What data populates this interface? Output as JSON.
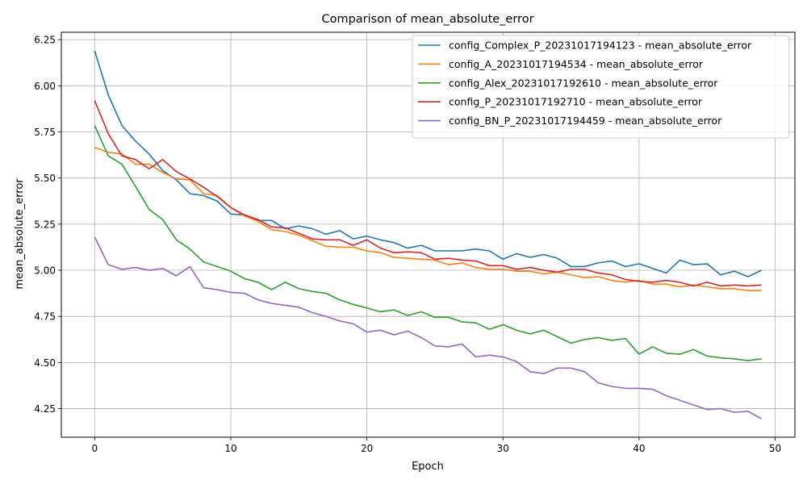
{
  "chart_data": {
    "type": "line",
    "title": "Comparison of mean_absolute_error",
    "xlabel": "Epoch",
    "ylabel": "mean_absolute_error",
    "xlim": [
      -2.45,
      51.45
    ],
    "ylim": [
      4.095,
      6.29
    ],
    "xticks": [
      0,
      10,
      20,
      30,
      40,
      50
    ],
    "yticks": [
      4.25,
      4.5,
      4.75,
      5.0,
      5.25,
      5.5,
      5.75,
      6.0,
      6.25
    ],
    "xtick_labels": [
      "0",
      "10",
      "20",
      "30",
      "40",
      "50"
    ],
    "ytick_labels": [
      "4.25",
      "4.50",
      "4.75",
      "5.00",
      "5.25",
      "5.50",
      "5.75",
      "6.00",
      "6.25"
    ],
    "grid": true,
    "legend_position": "top-right",
    "x": [
      0,
      1,
      2,
      3,
      4,
      5,
      6,
      7,
      8,
      9,
      10,
      11,
      12,
      13,
      14,
      15,
      16,
      17,
      18,
      19,
      20,
      21,
      22,
      23,
      24,
      25,
      26,
      27,
      28,
      29,
      30,
      31,
      32,
      33,
      34,
      35,
      36,
      37,
      38,
      39,
      40,
      41,
      42,
      43,
      44,
      45,
      46,
      47,
      48,
      49
    ],
    "series": [
      {
        "name": "config_Complex_P_20231017194123 - mean_absolute_error",
        "color": "#1f77b4",
        "values": [
          6.19,
          5.95,
          5.785,
          5.7,
          5.63,
          5.54,
          5.49,
          5.415,
          5.405,
          5.375,
          5.305,
          5.3,
          5.27,
          5.27,
          5.225,
          5.24,
          5.225,
          5.195,
          5.215,
          5.17,
          5.185,
          5.165,
          5.15,
          5.12,
          5.135,
          5.105,
          5.105,
          5.105,
          5.115,
          5.105,
          5.06,
          5.09,
          5.07,
          5.085,
          5.065,
          5.02,
          5.02,
          5.04,
          5.05,
          5.02,
          5.035,
          5.01,
          4.985,
          5.055,
          5.03,
          5.035,
          4.975,
          4.995,
          4.965,
          5.0
        ]
      },
      {
        "name": "config_A_20231017194534 - mean_absolute_error",
        "color": "#ff7f0e",
        "values": [
          5.665,
          5.64,
          5.63,
          5.575,
          5.575,
          5.53,
          5.495,
          5.49,
          5.415,
          5.405,
          5.34,
          5.295,
          5.265,
          5.22,
          5.21,
          5.19,
          5.16,
          5.13,
          5.125,
          5.125,
          5.105,
          5.095,
          5.07,
          5.065,
          5.06,
          5.055,
          5.03,
          5.04,
          5.015,
          5.005,
          5.005,
          4.995,
          4.995,
          4.98,
          4.99,
          4.975,
          4.96,
          4.965,
          4.945,
          4.935,
          4.945,
          4.925,
          4.925,
          4.91,
          4.92,
          4.91,
          4.9,
          4.9,
          4.89,
          4.89
        ]
      },
      {
        "name": "config_Alex_20231017192610 - mean_absolute_error",
        "color": "#2ca02c",
        "values": [
          5.785,
          5.62,
          5.575,
          5.455,
          5.33,
          5.275,
          5.165,
          5.115,
          5.045,
          5.02,
          4.995,
          4.955,
          4.935,
          4.895,
          4.935,
          4.9,
          4.885,
          4.875,
          4.84,
          4.815,
          4.795,
          4.775,
          4.785,
          4.755,
          4.775,
          4.745,
          4.745,
          4.72,
          4.715,
          4.68,
          4.705,
          4.675,
          4.655,
          4.675,
          4.64,
          4.605,
          4.625,
          4.635,
          4.62,
          4.63,
          4.545,
          4.585,
          4.55,
          4.545,
          4.57,
          4.535,
          4.525,
          4.52,
          4.51,
          4.52
        ]
      },
      {
        "name": "config_P_20231017192710 - mean_absolute_error",
        "color": "#d62728",
        "values": [
          5.92,
          5.74,
          5.62,
          5.6,
          5.55,
          5.6,
          5.535,
          5.495,
          5.45,
          5.4,
          5.34,
          5.3,
          5.275,
          5.235,
          5.23,
          5.2,
          5.17,
          5.165,
          5.165,
          5.135,
          5.165,
          5.12,
          5.095,
          5.1,
          5.095,
          5.06,
          5.065,
          5.055,
          5.05,
          5.025,
          5.025,
          5.005,
          5.015,
          5.0,
          4.99,
          5.005,
          5.005,
          4.985,
          4.975,
          4.95,
          4.94,
          4.935,
          4.945,
          4.935,
          4.915,
          4.935,
          4.915,
          4.92,
          4.915,
          4.92
        ]
      },
      {
        "name": "config_BN_P_20231017194459 - mean_absolute_error",
        "color": "#9467bd",
        "values": [
          5.18,
          5.03,
          5.005,
          5.015,
          5.0,
          5.01,
          4.97,
          5.02,
          4.905,
          4.895,
          4.88,
          4.875,
          4.84,
          4.82,
          4.81,
          4.8,
          4.77,
          4.75,
          4.725,
          4.71,
          4.665,
          4.675,
          4.65,
          4.67,
          4.635,
          4.59,
          4.585,
          4.6,
          4.53,
          4.54,
          4.53,
          4.505,
          4.45,
          4.44,
          4.47,
          4.47,
          4.45,
          4.39,
          4.37,
          4.36,
          4.36,
          4.355,
          4.32,
          4.295,
          4.27,
          4.245,
          4.25,
          4.23,
          4.235,
          4.195
        ]
      }
    ]
  }
}
